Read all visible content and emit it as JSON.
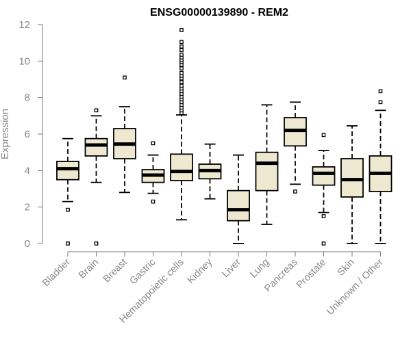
{
  "chart_data": {
    "type": "boxplot",
    "title": "ENSG00000139890 - REM2",
    "xlabel": "",
    "ylabel": "Expression",
    "ylim": [
      0,
      12
    ],
    "yticks": [
      0,
      2,
      4,
      6,
      8,
      10,
      12
    ],
    "box_fill": "#efe8d0",
    "categories": [
      "Bladder",
      "Brain",
      "Breast",
      "Gastric",
      "Hematopoietic cells",
      "Kidney",
      "Liver",
      "Lung",
      "Pancreas",
      "Prostate",
      "Skin",
      "Unknown / Other"
    ],
    "boxes": [
      {
        "whisker_low": 2.3,
        "q1": 3.5,
        "median": 4.1,
        "q3": 4.5,
        "whisker_high": 5.75,
        "outliers": [
          1.85,
          0.0
        ]
      },
      {
        "whisker_low": 3.35,
        "q1": 4.8,
        "median": 5.4,
        "q3": 5.75,
        "whisker_high": 7.0,
        "outliers": [
          7.3,
          0.0
        ]
      },
      {
        "whisker_low": 2.8,
        "q1": 4.65,
        "median": 5.45,
        "q3": 6.3,
        "whisker_high": 7.5,
        "outliers": [
          9.1
        ]
      },
      {
        "whisker_low": 2.75,
        "q1": 3.35,
        "median": 3.75,
        "q3": 4.05,
        "whisker_high": 4.85,
        "outliers": [
          5.5,
          2.3
        ]
      },
      {
        "whisker_low": 1.3,
        "q1": 3.45,
        "median": 3.95,
        "q3": 4.9,
        "whisker_high": 7.05,
        "outliers": [
          7.15,
          7.3,
          7.45,
          7.6,
          7.75,
          7.9,
          8.05,
          8.2,
          8.35,
          8.5,
          8.65,
          8.85,
          9.05,
          9.2,
          9.35,
          9.6,
          9.8,
          9.95,
          10.05,
          10.2,
          10.35,
          10.6,
          10.8,
          11.05,
          11.7
        ]
      },
      {
        "whisker_low": 2.45,
        "q1": 3.55,
        "median": 4.0,
        "q3": 4.35,
        "whisker_high": 5.45,
        "outliers": []
      },
      {
        "whisker_low": 0.0,
        "q1": 1.25,
        "median": 1.85,
        "q3": 2.9,
        "whisker_high": 4.85,
        "outliers": []
      },
      {
        "whisker_low": 1.05,
        "q1": 2.9,
        "median": 4.4,
        "q3": 5.0,
        "whisker_high": 7.6,
        "outliers": []
      },
      {
        "whisker_low": 3.25,
        "q1": 5.35,
        "median": 6.2,
        "q3": 6.9,
        "whisker_high": 7.75,
        "outliers": [
          2.85
        ]
      },
      {
        "whisker_low": 1.7,
        "q1": 3.2,
        "median": 3.85,
        "q3": 4.2,
        "whisker_high": 5.1,
        "outliers": [
          5.95,
          1.5,
          0.0
        ]
      },
      {
        "whisker_low": 0.0,
        "q1": 2.55,
        "median": 3.5,
        "q3": 4.65,
        "whisker_high": 6.45,
        "outliers": []
      },
      {
        "whisker_low": 0.0,
        "q1": 2.85,
        "median": 3.85,
        "q3": 4.8,
        "whisker_high": 7.3,
        "outliers": [
          7.75,
          8.35
        ]
      }
    ]
  }
}
